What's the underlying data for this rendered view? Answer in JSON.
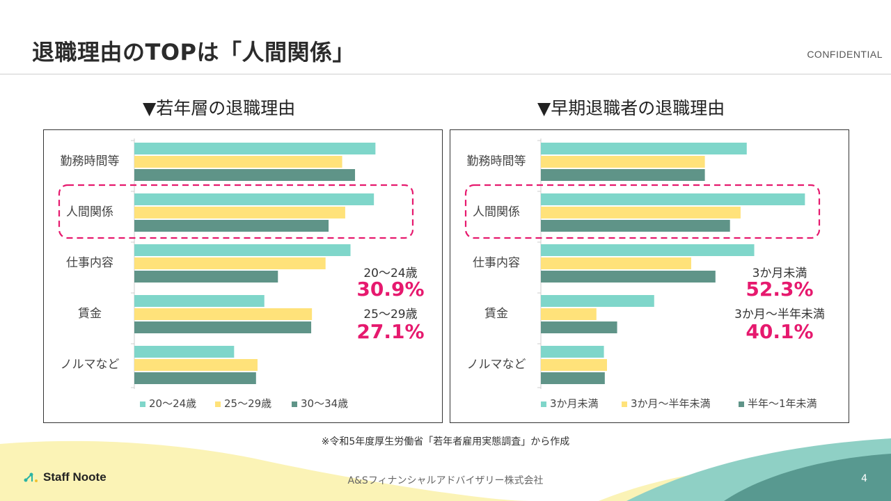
{
  "header": {
    "title": "退職理由のTOPは「人間関係」",
    "confidential": "CONFIDENTIAL"
  },
  "footer": {
    "source": "※令和5年度厚生労働省「若年者雇用実態調査」から作成",
    "logo": "Staff Noote",
    "company": "A&Sフィナンシャルアドバイザリー株式会社",
    "page": "4"
  },
  "colors": {
    "series1": "#7fd6ca",
    "series2": "#ffe27a",
    "series3": "#5f9488",
    "highlight": "#e6196e",
    "wave_yellow": "#fbf3b6",
    "wave_teal": "#8fd0c5",
    "wave_dark": "#4f8f86"
  },
  "chart_data": [
    {
      "type": "bar",
      "orientation": "horizontal",
      "title": "▼若年層の退職理由",
      "categories": [
        "勤務時間等",
        "人間関係",
        "仕事内容",
        "賃金",
        "ノルマなど"
      ],
      "highlight_category": "人間関係",
      "xlim": [
        0,
        35
      ],
      "series": [
        {
          "name": "20～24歳",
          "values": [
            31.9,
            31.7,
            28.6,
            17.2,
            13.2
          ]
        },
        {
          "name": "25～29歳",
          "values": [
            27.5,
            27.9,
            25.3,
            23.5,
            16.3
          ]
        },
        {
          "name": "30～34歳",
          "values": [
            29.2,
            25.7,
            19.0,
            23.4,
            16.1
          ]
        }
      ],
      "annotations": [
        {
          "label": "20～24歳",
          "value": "30.9%"
        },
        {
          "label": "25～29歳",
          "value": "27.1%"
        }
      ]
    },
    {
      "type": "bar",
      "orientation": "horizontal",
      "title": "▼早期退職者の退職理由",
      "categories": [
        "勤務時間等",
        "人間関係",
        "仕事内容",
        "賃金",
        "ノルマなど"
      ],
      "highlight_category": "人間関係",
      "xlim": [
        0,
        60
      ],
      "series": [
        {
          "name": "3か月未満",
          "values": [
            46.7,
            59.9,
            48.4,
            25.7,
            14.3
          ]
        },
        {
          "name": "3か月～半年未満",
          "values": [
            37.2,
            45.3,
            34.1,
            12.6,
            15.0
          ]
        },
        {
          "name": "半年～1年未満",
          "values": [
            37.2,
            42.9,
            39.6,
            17.3,
            14.5
          ]
        }
      ],
      "annotations": [
        {
          "label": "3か月未満",
          "value": "52.3%"
        },
        {
          "label": "3か月～半年未満",
          "value": "40.1%"
        }
      ]
    }
  ]
}
